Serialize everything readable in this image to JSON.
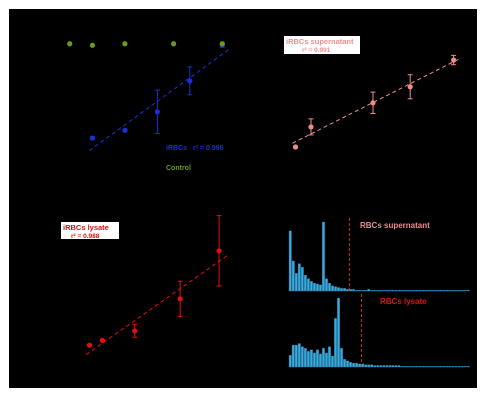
{
  "chart_data": [
    {
      "type": "scatter",
      "panel": "top-left",
      "series": [
        {
          "name": "iRBCs",
          "color": "#1a2fd6",
          "x": [
            1,
            2,
            3,
            4,
            5
          ],
          "y": [
            0.9,
            1.4,
            2.6,
            4.6,
            6.9
          ],
          "err": [
            0.08,
            0.06,
            1.4,
            0.9,
            0.12
          ],
          "fit": true,
          "r2_label": "r² = 0.998"
        },
        {
          "name": "Control",
          "color": "#6a9a1e",
          "x": [
            0.3,
            1.0,
            2.0,
            3.5,
            5.0
          ],
          "y": [
            7.0,
            6.9,
            7.0,
            7.0,
            7.0
          ],
          "err": [
            0,
            0,
            0,
            0,
            0
          ],
          "fit": false
        }
      ],
      "xlim": [
        0,
        5.3
      ],
      "ylim": [
        0,
        7.5
      ]
    },
    {
      "type": "scatter",
      "panel": "top-right",
      "title": "iRBCs supernatant",
      "r2_label": "r² = 0.991",
      "series": [
        {
          "name": "iRBCs supernatant",
          "color": "#f08c8c",
          "x": [
            0.5,
            1.0,
            3.0,
            4.2,
            5.6
          ],
          "y": [
            0.6,
            2.1,
            3.9,
            5.1,
            7.1
          ],
          "err": [
            0.05,
            0.6,
            0.8,
            0.9,
            0.35
          ],
          "fit": true
        }
      ],
      "xlim": [
        0,
        6
      ],
      "ylim": [
        0,
        8
      ]
    },
    {
      "type": "scatter",
      "panel": "bottom-left",
      "title": "iRBCs lysate",
      "r2_label": "r² = 0.988",
      "series": [
        {
          "name": "iRBCs lysate",
          "color": "#e01010",
          "x": [
            0.6,
            1.0,
            2.0,
            3.4,
            4.6
          ],
          "y": [
            0.3,
            0.6,
            1.2,
            3.2,
            6.2
          ],
          "err": [
            0.05,
            0.05,
            0.4,
            1.1,
            2.2
          ],
          "fit": true
        }
      ],
      "xlim": [
        0,
        5
      ],
      "ylim": [
        0,
        8
      ]
    },
    {
      "type": "bar",
      "panel": "right-middle",
      "title": "RBCs supernatant",
      "color": "#3aa9dd",
      "threshold_color": "#c0392b",
      "threshold_bin": 20,
      "values": [
        68,
        34,
        20,
        31,
        27,
        18,
        14,
        11,
        9,
        8,
        7,
        78,
        14,
        9,
        6,
        5,
        4,
        3,
        3,
        2,
        2,
        2,
        1,
        1,
        1,
        1,
        2,
        1,
        1,
        1,
        1,
        1,
        1,
        1,
        1,
        1,
        1,
        1,
        1,
        1,
        1,
        1,
        1,
        1,
        1,
        1,
        1,
        1,
        1,
        1,
        1,
        1,
        1,
        1,
        1,
        1,
        1,
        1,
        1,
        1
      ]
    },
    {
      "type": "bar",
      "panel": "right-bottom",
      "title": "RBCs lysate",
      "color": "#3aa9dd",
      "threshold_color": "#c0392b",
      "threshold_bin": 24,
      "values": [
        15,
        28,
        28,
        30,
        26,
        24,
        20,
        22,
        18,
        22,
        17,
        24,
        18,
        26,
        14,
        62,
        88,
        24,
        10,
        8,
        6,
        5,
        5,
        4,
        4,
        3,
        3,
        3,
        2,
        2,
        2,
        2,
        2,
        2,
        2,
        2,
        2,
        1,
        1,
        1,
        1,
        1,
        1,
        1,
        1,
        1,
        1,
        1,
        1,
        1,
        1,
        1,
        1,
        1,
        1,
        1,
        1,
        1,
        1,
        1
      ]
    }
  ],
  "legend": {
    "irbcs": "iRBCs",
    "control": "Control"
  }
}
